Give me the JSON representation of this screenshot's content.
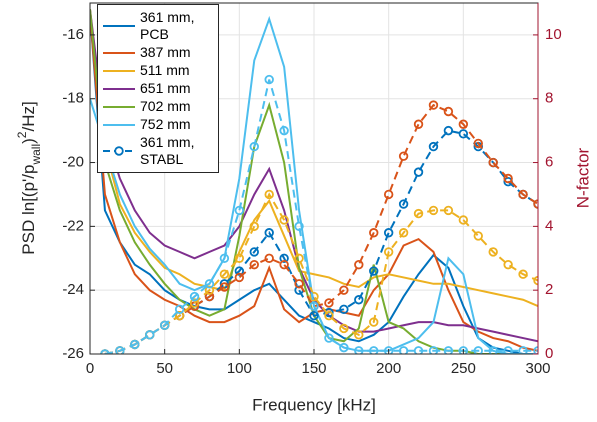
{
  "chart_data": {
    "type": "line",
    "xlabel": "Frequency [kHz]",
    "ylabel": [
      "PSD ln[(p'/p",
      "wall",
      ")",
      "2",
      "/Hz]"
    ],
    "y2label": "N-factor",
    "y2color": "#a2142f",
    "x": [
      0,
      10,
      20,
      30,
      40,
      50,
      60,
      70,
      80,
      90,
      100,
      110,
      120,
      130,
      140,
      150,
      160,
      170,
      180,
      190,
      200,
      210,
      220,
      230,
      240,
      250,
      260,
      270,
      280,
      290,
      300
    ],
    "xlim": [
      0,
      300
    ],
    "xticks": [
      0,
      50,
      100,
      150,
      200,
      250,
      300
    ],
    "ylim": [
      -26,
      -15
    ],
    "yticks": [
      -26,
      -24,
      -22,
      -20,
      -18,
      -16
    ],
    "y2lim": [
      0,
      11
    ],
    "y2ticks": [
      0,
      2,
      4,
      6,
      8,
      10
    ],
    "grid": true,
    "legend": "upper left",
    "series": [
      {
        "name": "361 mm, PCB",
        "color": "#0072bd",
        "values": [
          -15.3,
          -21.5,
          -22.5,
          -23.2,
          -23.5,
          -24.0,
          -24.3,
          -24.5,
          -24.6,
          -24.6,
          -24.3,
          -24.0,
          -23.8,
          -24.3,
          -24.8,
          -25.0,
          -25.2,
          -25.5,
          -25.6,
          -25.4,
          -25.0,
          -24.2,
          -23.5,
          -22.9,
          -23.3,
          -24.5,
          -25.5,
          -25.8,
          -25.9,
          -26.0,
          -26.0
        ]
      },
      {
        "name": "387 mm",
        "color": "#d95319",
        "values": [
          -15.3,
          -21.0,
          -22.5,
          -23.5,
          -24.0,
          -24.3,
          -24.5,
          -24.8,
          -25.0,
          -25.0,
          -24.8,
          -24.5,
          -23.3,
          -24.6,
          -25.0,
          -24.7,
          -24.6,
          -24.7,
          -24.8,
          -24.0,
          -23.5,
          -22.6,
          -22.4,
          -22.8,
          -24.0,
          -25.0,
          -25.3,
          -25.5,
          -25.6,
          -25.8,
          -25.9
        ]
      },
      {
        "name": "511 mm",
        "color": "#edb120",
        "values": [
          -15.2,
          -19.5,
          -21.3,
          -22.2,
          -22.8,
          -23.3,
          -23.5,
          -23.8,
          -23.9,
          -24.0,
          -22.8,
          -21.8,
          -21.2,
          -22.3,
          -23.4,
          -23.5,
          -23.6,
          -23.8,
          -23.9,
          -23.6,
          -23.5,
          -23.6,
          -23.7,
          -23.8,
          -23.8,
          -23.9,
          -24.0,
          -24.1,
          -24.2,
          -24.3,
          -24.5
        ]
      },
      {
        "name": "651 mm",
        "color": "#7e2f8e",
        "values": [
          -15.2,
          -19.0,
          -20.5,
          -21.5,
          -22.2,
          -22.6,
          -22.8,
          -23.0,
          -22.8,
          -22.6,
          -22.0,
          -21.0,
          -20.2,
          -21.5,
          -23.3,
          -24.3,
          -24.8,
          -25.1,
          -25.3,
          -25.3,
          -25.2,
          -25.1,
          -25.0,
          -25.0,
          -25.1,
          -25.1,
          -25.2,
          -25.3,
          -25.4,
          -25.5,
          -25.6
        ]
      },
      {
        "name": "702 mm",
        "color": "#77ac30",
        "values": [
          -15.2,
          -20.0,
          -21.5,
          -22.5,
          -23.2,
          -23.8,
          -24.3,
          -24.6,
          -24.8,
          -24.6,
          -22.3,
          -19.5,
          -18.2,
          -20.0,
          -23.3,
          -24.8,
          -25.5,
          -25.6,
          -25.2,
          -23.2,
          -25.0,
          -25.2,
          -25.6,
          -25.8,
          -25.9,
          -25.9,
          -26.0,
          -26.0,
          -26.0,
          -26.0,
          -26.0
        ]
      },
      {
        "name": "752 mm",
        "color": "#4dbeee",
        "values": [
          -18.0,
          -19.5,
          -21.0,
          -22.0,
          -22.7,
          -23.2,
          -23.8,
          -24.0,
          -23.8,
          -23.0,
          -20.5,
          -16.8,
          -15.5,
          -17.0,
          -21.5,
          -24.5,
          -25.5,
          -25.8,
          -25.9,
          -25.9,
          -25.9,
          -25.7,
          -25.5,
          -25.0,
          -23.0,
          -23.5,
          -25.5,
          -25.9,
          -26.0,
          -26.0,
          -26.0
        ]
      },
      {
        "name": "361 mm, STABL",
        "color": "#0072bd",
        "axis": "y2",
        "linestyle": "--",
        "marker": "o",
        "values": [
          null,
          0,
          0.1,
          0.3,
          0.6,
          0.9,
          1.2,
          1.5,
          1.8,
          2.2,
          2.6,
          3.2,
          3.8,
          3.0,
          2.0,
          1.2,
          1.3,
          1.4,
          1.7,
          2.6,
          3.8,
          4.7,
          5.7,
          6.5,
          7.0,
          6.9,
          6.5,
          6.0,
          5.4,
          5.0,
          4.7
        ]
      },
      {
        "color": "#d95319",
        "axis": "y2",
        "linestyle": "--",
        "marker": "o",
        "values": [
          null,
          0,
          0.1,
          0.3,
          0.6,
          0.9,
          1.2,
          1.5,
          1.8,
          2.1,
          2.4,
          2.8,
          3.0,
          2.8,
          2.2,
          1.5,
          1.6,
          2.0,
          2.8,
          3.8,
          5.0,
          6.2,
          7.2,
          7.8,
          7.6,
          7.2,
          6.6,
          6.0,
          5.5,
          5.0,
          4.7
        ]
      },
      {
        "color": "#edb120",
        "axis": "y2",
        "linestyle": "--",
        "marker": "o",
        "values": [
          null,
          0,
          0.1,
          0.3,
          0.6,
          0.9,
          1.2,
          1.6,
          2.0,
          2.5,
          3.0,
          4.0,
          5.0,
          4.2,
          3.0,
          1.8,
          1.2,
          0.8,
          0.6,
          1.0,
          3.2,
          3.8,
          4.4,
          4.5,
          4.5,
          4.2,
          3.7,
          3.2,
          2.8,
          2.5,
          2.3
        ]
      },
      {
        "color": "#4dbeee",
        "axis": "y2",
        "linestyle": "--",
        "marker": "o",
        "values": [
          null,
          0,
          0.1,
          0.3,
          0.6,
          0.9,
          1.4,
          1.8,
          2.2,
          3.0,
          4.5,
          6.5,
          8.6,
          7.0,
          4.0,
          1.5,
          0.5,
          0.2,
          0.1,
          0.1,
          0.1,
          0.1,
          0.1,
          0.1,
          0.1,
          0.1,
          0.1,
          0.1,
          0.1,
          0.1,
          0.1
        ]
      }
    ]
  }
}
